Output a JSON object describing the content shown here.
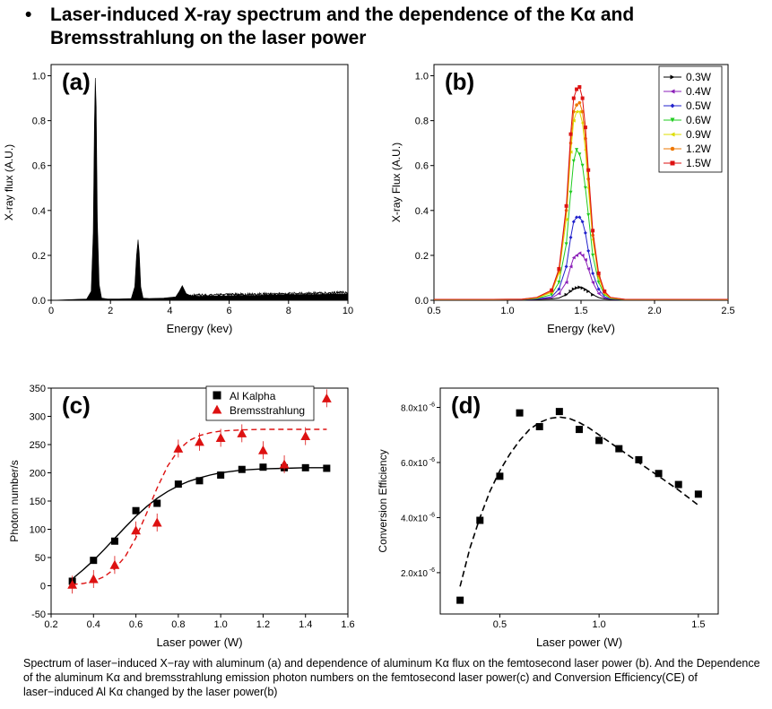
{
  "heading": {
    "bullet": "•",
    "text": "Laser-induced X-ray spectrum and the dependence of the Kα and Bremsstrahlung on the laser power"
  },
  "caption": "Spectrum of laser−induced X−ray with aluminum (a) and dependence of aluminum Kα flux on the femtosecond laser power (b). And the Dependence of the aluminum Kα and bremsstrahlung emission photon numbers on the femtosecond laser power(c) and Conversion Efficiency(CE) of laser−induced Al Kα changed by the laser power(b)",
  "chart_data": [
    {
      "id": "a",
      "panel_label": "(a)",
      "type": "area",
      "xlabel": "Energy (kev)",
      "ylabel": "X-ray flux (A.U.)",
      "xlim": [
        0,
        10
      ],
      "ylim": [
        0,
        1.05
      ],
      "xticks": [
        "0",
        "2",
        "4",
        "6",
        "8",
        "10"
      ],
      "yticks": [
        "0.0",
        "0.2",
        "0.4",
        "0.6",
        "0.8",
        "1.0"
      ],
      "color": "#000000",
      "x": [
        0,
        0.4,
        0.8,
        1.2,
        1.35,
        1.42,
        1.46,
        1.49,
        1.52,
        1.56,
        1.62,
        1.7,
        1.9,
        2.3,
        2.7,
        2.82,
        2.88,
        2.93,
        2.97,
        3.02,
        3.1,
        3.3,
        3.8,
        4.2,
        4.32,
        4.42,
        4.55,
        4.7,
        5.0,
        6.0,
        7.0,
        8.0,
        9.0,
        10.0
      ],
      "y": [
        0,
        0.002,
        0.004,
        0.006,
        0.04,
        0.3,
        0.78,
        0.99,
        0.86,
        0.35,
        0.07,
        0.01,
        0.006,
        0.006,
        0.008,
        0.06,
        0.2,
        0.27,
        0.21,
        0.06,
        0.01,
        0.008,
        0.01,
        0.015,
        0.04,
        0.065,
        0.03,
        0.02,
        0.018,
        0.02,
        0.022,
        0.025,
        0.026,
        0.028
      ]
    },
    {
      "id": "b",
      "panel_label": "(b)",
      "type": "line",
      "xlabel": "Energy (keV)",
      "ylabel": "X-ray Flux (A.U.)",
      "xlim": [
        0.5,
        2.5
      ],
      "ylim": [
        0,
        1.05
      ],
      "xticks": [
        "0.5",
        "1.0",
        "1.5",
        "2.0",
        "2.5"
      ],
      "yticks": [
        "0.0",
        "0.2",
        "0.4",
        "0.6",
        "0.8",
        "1.0"
      ],
      "legend_position": "top-right",
      "x": [
        0.5,
        0.7,
        0.9,
        1.1,
        1.2,
        1.3,
        1.35,
        1.4,
        1.43,
        1.45,
        1.47,
        1.49,
        1.51,
        1.53,
        1.55,
        1.58,
        1.62,
        1.66,
        1.7,
        1.8,
        2.0,
        2.2,
        2.5
      ],
      "series": [
        {
          "name": "0.3W",
          "color": "#000000",
          "marker": "arrow-right",
          "values": [
            0.003,
            0.003,
            0.003,
            0.003,
            0.004,
            0.006,
            0.01,
            0.025,
            0.04,
            0.05,
            0.055,
            0.058,
            0.055,
            0.048,
            0.04,
            0.025,
            0.012,
            0.006,
            0.004,
            0.003,
            0.003,
            0.003,
            0.003
          ]
        },
        {
          "name": "0.4W",
          "color": "#8b1fb8",
          "marker": "arrow-left",
          "values": [
            0.003,
            0.003,
            0.003,
            0.003,
            0.005,
            0.01,
            0.03,
            0.08,
            0.15,
            0.19,
            0.2,
            0.21,
            0.2,
            0.18,
            0.14,
            0.08,
            0.03,
            0.01,
            0.005,
            0.003,
            0.003,
            0.003,
            0.003
          ]
        },
        {
          "name": "0.5W",
          "color": "#2222cc",
          "marker": "diamond",
          "values": [
            0.003,
            0.003,
            0.003,
            0.004,
            0.006,
            0.015,
            0.05,
            0.15,
            0.28,
            0.35,
            0.37,
            0.37,
            0.35,
            0.3,
            0.22,
            0.12,
            0.05,
            0.015,
            0.006,
            0.003,
            0.003,
            0.003,
            0.003
          ]
        },
        {
          "name": "0.6W",
          "color": "#22cc22",
          "marker": "triangle-down",
          "values": [
            0.003,
            0.003,
            0.003,
            0.004,
            0.008,
            0.025,
            0.08,
            0.25,
            0.48,
            0.62,
            0.67,
            0.65,
            0.6,
            0.5,
            0.38,
            0.2,
            0.08,
            0.025,
            0.008,
            0.003,
            0.003,
            0.003,
            0.003
          ]
        },
        {
          "name": "0.9W",
          "color": "#dddd00",
          "marker": "triangle-left",
          "values": [
            0.003,
            0.003,
            0.003,
            0.004,
            0.01,
            0.035,
            0.12,
            0.36,
            0.66,
            0.8,
            0.84,
            0.84,
            0.79,
            0.67,
            0.5,
            0.27,
            0.1,
            0.03,
            0.01,
            0.003,
            0.003,
            0.003,
            0.003
          ]
        },
        {
          "name": "1.2W",
          "color": "#ee7700",
          "marker": "hexagon",
          "values": [
            0.004,
            0.004,
            0.004,
            0.005,
            0.012,
            0.04,
            0.13,
            0.4,
            0.7,
            0.84,
            0.87,
            0.88,
            0.84,
            0.72,
            0.54,
            0.29,
            0.11,
            0.035,
            0.012,
            0.004,
            0.004,
            0.004,
            0.004
          ]
        },
        {
          "name": "1.5W",
          "color": "#dd1111",
          "marker": "square",
          "values": [
            0.004,
            0.004,
            0.004,
            0.005,
            0.013,
            0.045,
            0.14,
            0.42,
            0.74,
            0.9,
            0.94,
            0.95,
            0.9,
            0.77,
            0.58,
            0.31,
            0.12,
            0.04,
            0.013,
            0.004,
            0.004,
            0.004,
            0.004
          ]
        }
      ]
    },
    {
      "id": "c",
      "panel_label": "(c)",
      "type": "scatter",
      "xlabel": "Laser power (W)",
      "ylabel": "Photon number/s",
      "xlim": [
        0.2,
        1.6
      ],
      "ylim": [
        -50,
        350
      ],
      "xticks": [
        "0.2",
        "0.4",
        "0.6",
        "0.8",
        "1.0",
        "1.2",
        "1.4",
        "1.6"
      ],
      "yticks": [
        "-50",
        "0",
        "50",
        "100",
        "150",
        "200",
        "250",
        "300",
        "350"
      ],
      "legend_position": "top-right",
      "series": [
        {
          "name": "Al Kalpha",
          "color": "#000000",
          "marker": "square",
          "fit": "solid",
          "x": [
            0.3,
            0.4,
            0.5,
            0.6,
            0.7,
            0.8,
            0.9,
            1.0,
            1.1,
            1.2,
            1.3,
            1.4,
            1.5
          ],
          "values": [
            8,
            45,
            79,
            133,
            146,
            180,
            186,
            196,
            206,
            210,
            209,
            209,
            208
          ],
          "fit_x": [
            0.3,
            0.35,
            0.4,
            0.45,
            0.5,
            0.55,
            0.6,
            0.65,
            0.7,
            0.75,
            0.8,
            0.85,
            0.9,
            0.95,
            1.0,
            1.1,
            1.2,
            1.3,
            1.4,
            1.5
          ],
          "fit_y": [
            12,
            28,
            45,
            64,
            84,
            104,
            123,
            140,
            155,
            167,
            177,
            185,
            191,
            196,
            200,
            205,
            207,
            208,
            209,
            209
          ]
        },
        {
          "name": "Bremsstrahlung",
          "color": "#dd1111",
          "marker": "triangle-up",
          "fit": "dashed",
          "x": [
            0.3,
            0.4,
            0.5,
            0.6,
            0.7,
            0.8,
            0.9,
            1.0,
            1.1,
            1.2,
            1.3,
            1.4,
            1.5
          ],
          "values": [
            2,
            12,
            37,
            98,
            112,
            243,
            255,
            262,
            270,
            240,
            215,
            265,
            332
          ],
          "fit_x": [
            0.3,
            0.35,
            0.4,
            0.45,
            0.5,
            0.55,
            0.6,
            0.65,
            0.7,
            0.75,
            0.8,
            0.85,
            0.9,
            0.95,
            1.0,
            1.1,
            1.2,
            1.3,
            1.4,
            1.5
          ],
          "fit_y": [
            2,
            4,
            8,
            16,
            30,
            52,
            85,
            128,
            173,
            212,
            240,
            257,
            266,
            271,
            274,
            276,
            277,
            277,
            277,
            277
          ]
        }
      ]
    },
    {
      "id": "d",
      "panel_label": "(d)",
      "type": "scatter",
      "xlabel": "Laser power (W)",
      "ylabel": "Conversion Efficiency",
      "xlim": [
        0.2,
        1.6
      ],
      "ylim": [
        5e-07,
        8.7e-06
      ],
      "xticks": [
        "0.5",
        "1.0",
        "1.5"
      ],
      "ytick_values": [
        2e-06,
        4e-06,
        6e-06,
        8e-06
      ],
      "yticks": [
        "2.0x10",
        "4.0x10",
        "6.0x10",
        "8.0x10"
      ],
      "ytick_exponent": "-6",
      "series": [
        {
          "name": "",
          "color": "#000000",
          "marker": "square",
          "fit": "dashed",
          "x": [
            0.3,
            0.4,
            0.5,
            0.6,
            0.7,
            0.8,
            0.9,
            1.0,
            1.1,
            1.2,
            1.3,
            1.4,
            1.5
          ],
          "values": [
            1e-06,
            3.9e-06,
            5.5e-06,
            7.8e-06,
            7.3e-06,
            7.85e-06,
            7.2e-06,
            6.8e-06,
            6.5e-06,
            6.1e-06,
            5.6e-06,
            5.2e-06,
            4.85e-06
          ],
          "fit_x": [
            0.3,
            0.35,
            0.4,
            0.45,
            0.5,
            0.55,
            0.6,
            0.65,
            0.7,
            0.75,
            0.8,
            0.85,
            0.9,
            0.95,
            1.0,
            1.1,
            1.2,
            1.3,
            1.4,
            1.5
          ],
          "fit_y": [
            1.5e-06,
            2.9e-06,
            4e-06,
            4.95e-06,
            5.7e-06,
            6.3e-06,
            6.8e-06,
            7.2e-06,
            7.45e-06,
            7.6e-06,
            7.65e-06,
            7.6e-06,
            7.45e-06,
            7.25e-06,
            7e-06,
            6.5e-06,
            6e-06,
            5.5e-06,
            5e-06,
            4.45e-06
          ]
        }
      ]
    }
  ]
}
